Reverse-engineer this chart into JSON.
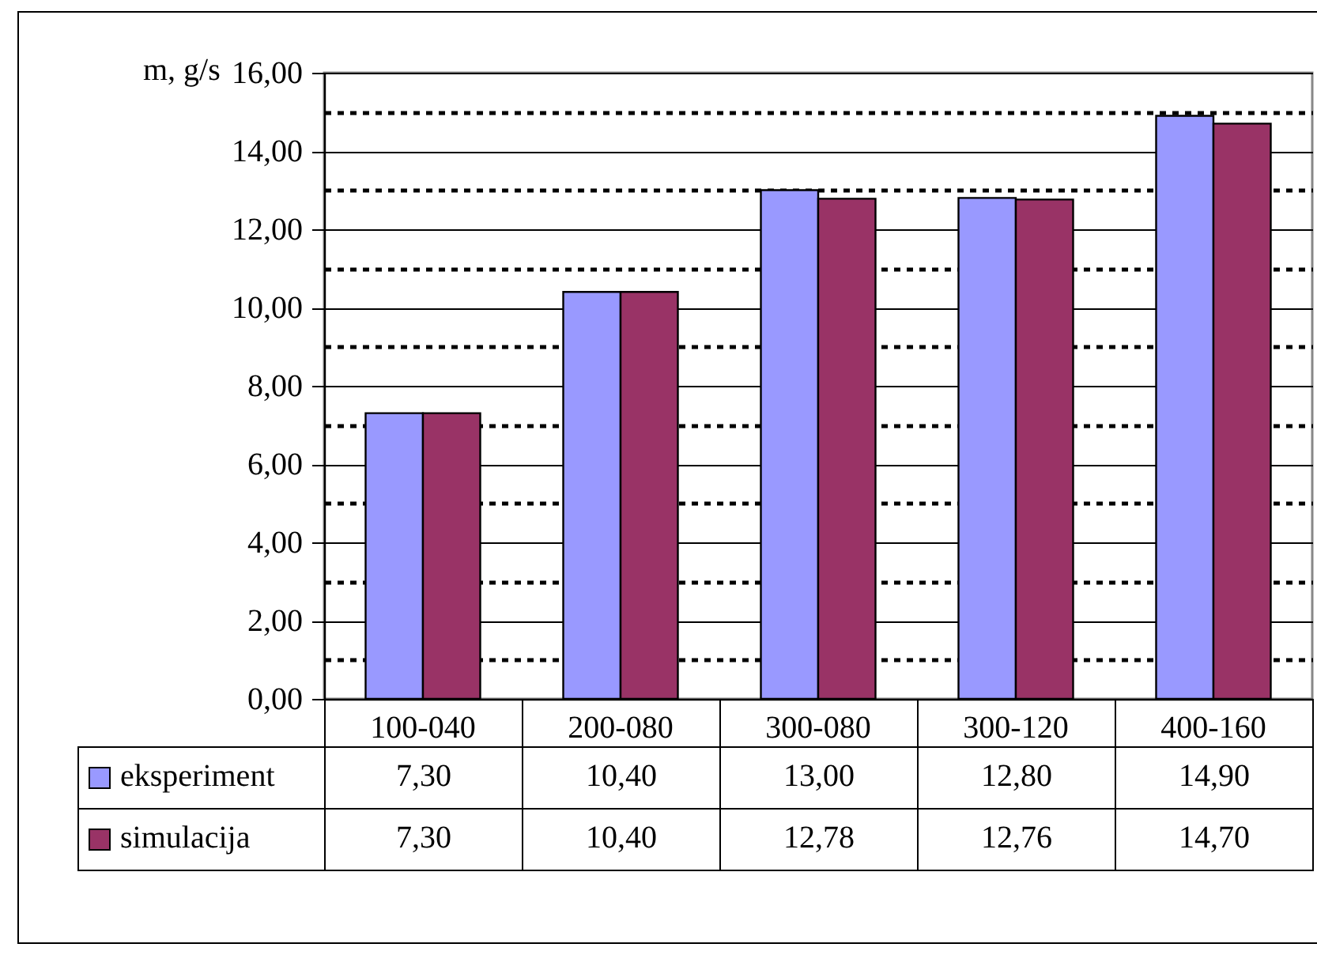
{
  "chart_data": {
    "type": "bar",
    "ylabel": "m, g/s",
    "categories": [
      "100-040",
      "200-080",
      "300-080",
      "300-120",
      "400-160"
    ],
    "series": [
      {
        "name": "eksperiment",
        "color": "#9999ff",
        "values": [
          7.3,
          10.4,
          13.0,
          12.8,
          14.9
        ],
        "value_labels": [
          "7,30",
          "10,40",
          "13,00",
          "12,80",
          "14,90"
        ]
      },
      {
        "name": "simulacija",
        "color": "#993366",
        "values": [
          7.3,
          10.4,
          12.78,
          12.76,
          14.7
        ],
        "value_labels": [
          "7,30",
          "10,40",
          "12,78",
          "12,76",
          "14,70"
        ]
      }
    ],
    "ylim": [
      0,
      16
    ],
    "yticks": [
      {
        "value": 0,
        "label": "0,00"
      },
      {
        "value": 1,
        "label": null
      },
      {
        "value": 2,
        "label": "2,00"
      },
      {
        "value": 3,
        "label": null
      },
      {
        "value": 4,
        "label": "4,00"
      },
      {
        "value": 5,
        "label": null
      },
      {
        "value": 6,
        "label": "6,00"
      },
      {
        "value": 7,
        "label": null
      },
      {
        "value": 8,
        "label": "8,00"
      },
      {
        "value": 9,
        "label": null
      },
      {
        "value": 10,
        "label": "10,00"
      },
      {
        "value": 11,
        "label": null
      },
      {
        "value": 12,
        "label": "12,00"
      },
      {
        "value": 13,
        "label": null
      },
      {
        "value": 14,
        "label": "14,00"
      },
      {
        "value": 15,
        "label": null
      },
      {
        "value": 16,
        "label": "16,00"
      }
    ],
    "grid": true,
    "legend": "bottom"
  }
}
